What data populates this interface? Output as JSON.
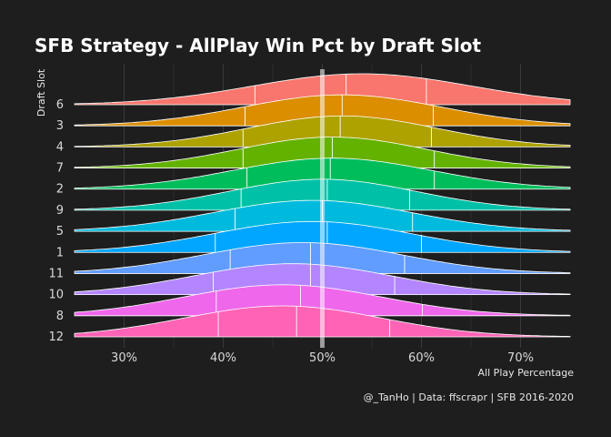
{
  "chart_data": {
    "type": "ridgeline",
    "title": "SFB Strategy - AllPlay Win Pct by Draft Slot",
    "xlabel": "All Play Percentage",
    "ylabel": "Draft Slot",
    "caption": "@_TanHo | Data: ffscrapr | SFB 2016-2020",
    "xlim": [
      0.25,
      0.75
    ],
    "xticks": [
      {
        "value": 0.3,
        "label": "30%"
      },
      {
        "value": 0.4,
        "label": "40%"
      },
      {
        "value": 0.5,
        "label": "50%"
      },
      {
        "value": 0.6,
        "label": "60%"
      },
      {
        "value": 0.7,
        "label": "70%"
      }
    ],
    "reference_line": 0.5,
    "grid": true,
    "legend": "none",
    "series": [
      {
        "name": "6",
        "color": "#F8766D",
        "mean": 0.54,
        "sd": 0.11,
        "quartiles": [
          0.432,
          0.524,
          0.605
        ]
      },
      {
        "name": "3",
        "color": "#DB8E00",
        "mean": 0.52,
        "sd": 0.1,
        "quartiles": [
          0.422,
          0.52,
          0.612
        ]
      },
      {
        "name": "4",
        "color": "#AEA200",
        "mean": 0.52,
        "sd": 0.095,
        "quartiles": [
          0.42,
          0.518,
          0.61
        ]
      },
      {
        "name": "7",
        "color": "#64B200",
        "mean": 0.51,
        "sd": 0.095,
        "quartiles": [
          0.42,
          0.51,
          0.613
        ]
      },
      {
        "name": "2",
        "color": "#00BD5C",
        "mean": 0.51,
        "sd": 0.1,
        "quartiles": [
          0.424,
          0.508,
          0.613
        ]
      },
      {
        "name": "9",
        "color": "#00C1A7",
        "mean": 0.5,
        "sd": 0.095,
        "quartiles": [
          0.418,
          0.505,
          0.588
        ]
      },
      {
        "name": "5",
        "color": "#00BADE",
        "mean": 0.49,
        "sd": 0.1,
        "quartiles": [
          0.412,
          0.5,
          0.591
        ]
      },
      {
        "name": "1",
        "color": "#00A6FF",
        "mean": 0.49,
        "sd": 0.1,
        "quartiles": [
          0.392,
          0.505,
          0.6
        ]
      },
      {
        "name": "11",
        "color": "#619CFF",
        "mean": 0.48,
        "sd": 0.1,
        "quartiles": [
          0.407,
          0.488,
          0.583
        ]
      },
      {
        "name": "10",
        "color": "#B385FF",
        "mean": 0.47,
        "sd": 0.1,
        "quartiles": [
          0.39,
          0.488,
          0.573
        ]
      },
      {
        "name": "8",
        "color": "#EF67EB",
        "mean": 0.46,
        "sd": 0.1,
        "quartiles": [
          0.393,
          0.478,
          0.601
        ]
      },
      {
        "name": "12",
        "color": "#FF63B6",
        "mean": 0.46,
        "sd": 0.1,
        "quartiles": [
          0.395,
          0.474,
          0.568
        ]
      }
    ]
  }
}
